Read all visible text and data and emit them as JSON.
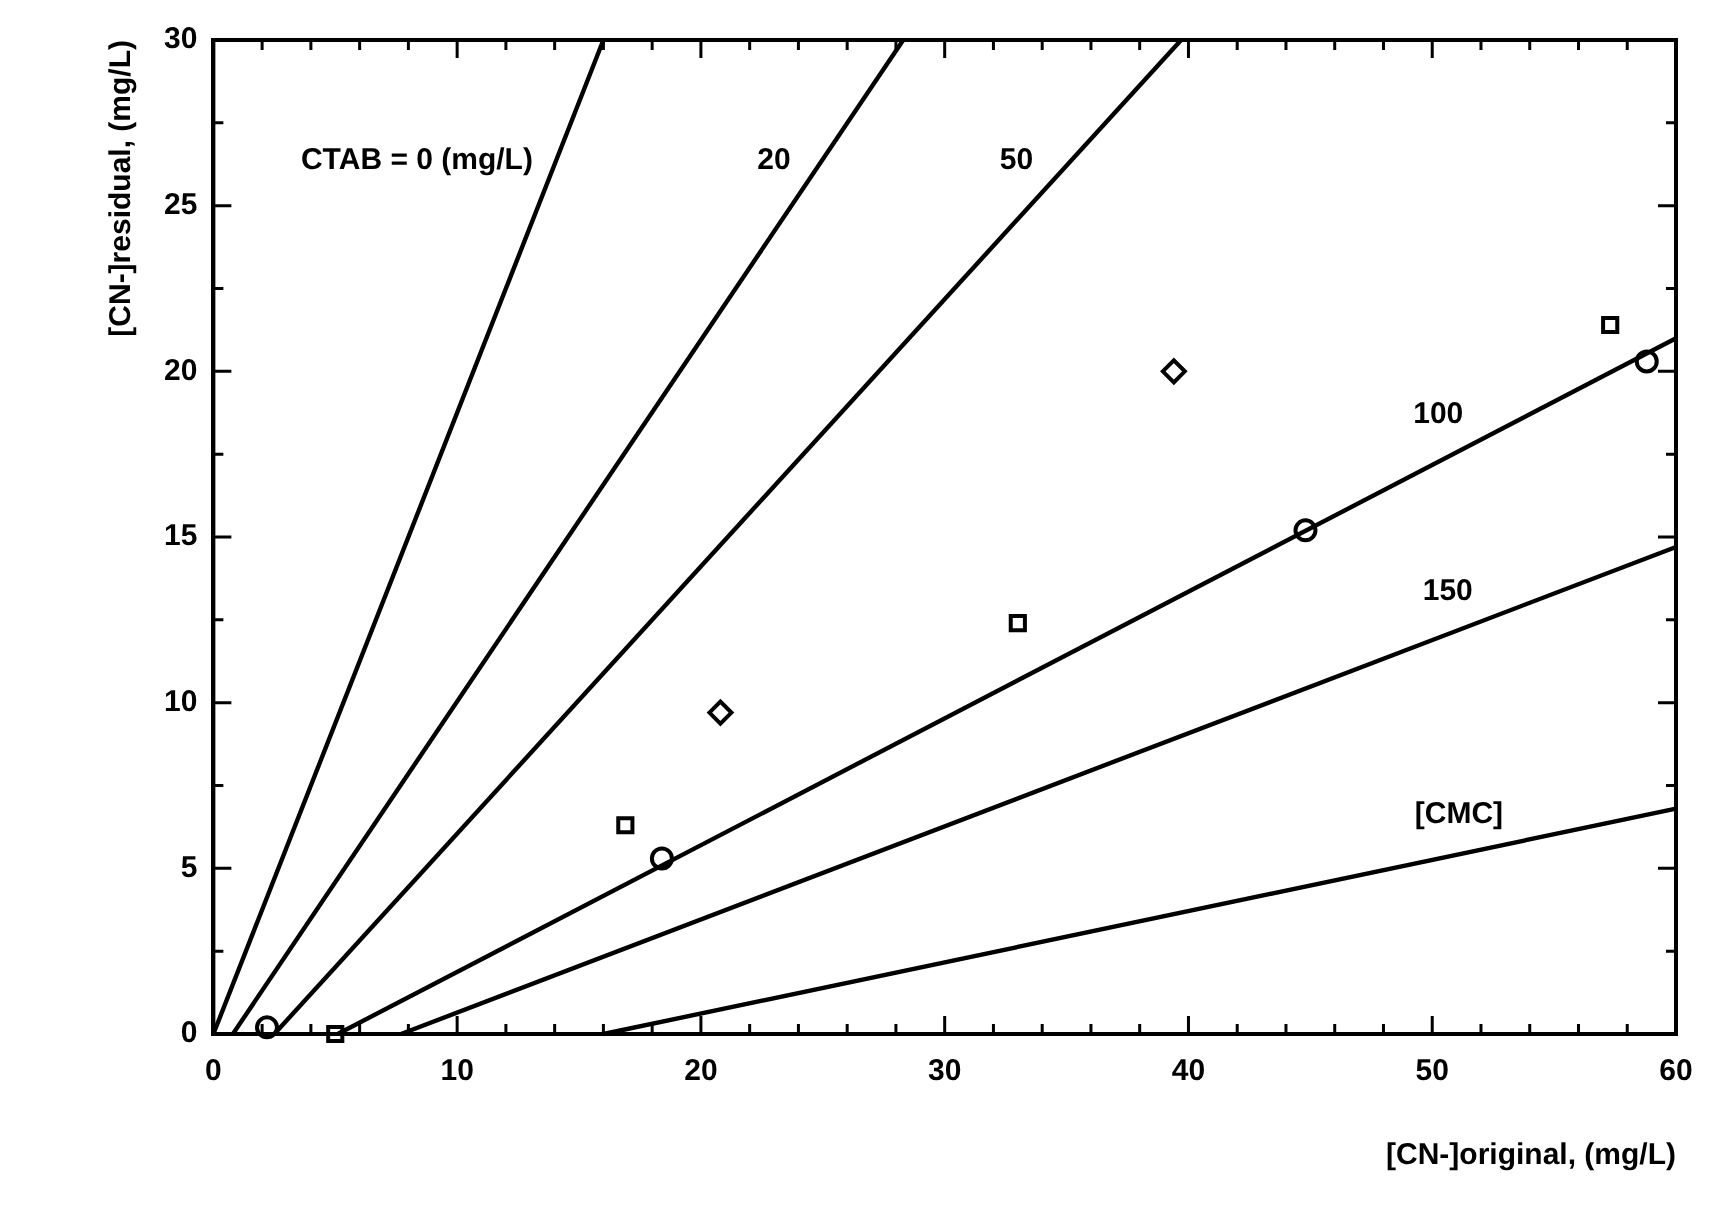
{
  "chart_data": {
    "type": "line",
    "xlabel": "[CN-]original, (mg/L)",
    "ylabel": "[CN-]residual, (mg/L)",
    "xlim": [
      0,
      60
    ],
    "ylim": [
      0,
      30
    ],
    "xticks": [
      0,
      {
        "value": 2,
        "label": null
      },
      {
        "value": 4,
        "label": null
      },
      {
        "value": 6,
        "label": null
      },
      {
        "value": 8,
        "label": null
      },
      10,
      {
        "value": 12,
        "label": null
      },
      {
        "value": 14,
        "label": null
      },
      {
        "value": 16,
        "label": null
      },
      {
        "value": 18,
        "label": null
      },
      20,
      {
        "value": 22,
        "label": null
      },
      {
        "value": 24,
        "label": null
      },
      {
        "value": 26,
        "label": null
      },
      {
        "value": 28,
        "label": null
      },
      30,
      {
        "value": 32,
        "label": null
      },
      {
        "value": 34,
        "label": null
      },
      {
        "value": 36,
        "label": null
      },
      {
        "value": 38,
        "label": null
      },
      40,
      {
        "value": 42,
        "label": null
      },
      {
        "value": 44,
        "label": null
      },
      {
        "value": 46,
        "label": null
      },
      {
        "value": 48,
        "label": null
      },
      50,
      {
        "value": 52,
        "label": null
      },
      {
        "value": 54,
        "label": null
      },
      {
        "value": 56,
        "label": null
      },
      {
        "value": 58,
        "label": null
      },
      60
    ],
    "yticks": [
      0,
      {
        "value": 2.5,
        "label": null
      },
      5,
      {
        "value": 7.5,
        "label": null
      },
      10,
      {
        "value": 12.5,
        "label": null
      },
      15,
      {
        "value": 17.5,
        "label": null
      },
      20,
      {
        "value": 22.5,
        "label": null
      },
      25,
      {
        "value": 27.5,
        "label": null
      },
      30
    ],
    "grid": false,
    "legend": false,
    "line_style": "solid",
    "series": [
      {
        "name": "CTAB = 0 (mg/L)",
        "color": "#000000",
        "x": [
          0,
          16
        ],
        "values": [
          0,
          30
        ]
      },
      {
        "name": "20",
        "color": "#000000",
        "x": [
          0.8,
          28.3
        ],
        "values": [
          0,
          30
        ]
      },
      {
        "name": "50",
        "color": "#000000",
        "x": [
          2.5,
          39.7
        ],
        "values": [
          0,
          30
        ]
      },
      {
        "name": "100",
        "color": "#000000",
        "x": [
          5.1,
          60
        ],
        "values": [
          0,
          21
        ]
      },
      {
        "name": "150",
        "color": "#000000",
        "x": [
          7.7,
          60
        ],
        "values": [
          0,
          14.7
        ]
      },
      {
        "name": "[CMC]",
        "color": "#000000",
        "x": [
          16,
          60
        ],
        "values": [
          0,
          6.8
        ]
      },
      {
        "type": "scatter",
        "marker": "circle",
        "color": "#000000",
        "x": [
          2.2,
          18.4,
          44.8,
          58.8
        ],
        "values": [
          0.2,
          5.3,
          15.2,
          20.3
        ]
      },
      {
        "type": "scatter",
        "marker": "square",
        "color": "#000000",
        "x": [
          5,
          16.9,
          33,
          57.3
        ],
        "values": [
          0,
          6.3,
          12.4,
          21.4
        ]
      },
      {
        "type": "scatter",
        "marker": "diamond",
        "color": "#000000",
        "x": [
          20.8,
          39.4
        ],
        "values": [
          9.7,
          20
        ]
      }
    ]
  }
}
